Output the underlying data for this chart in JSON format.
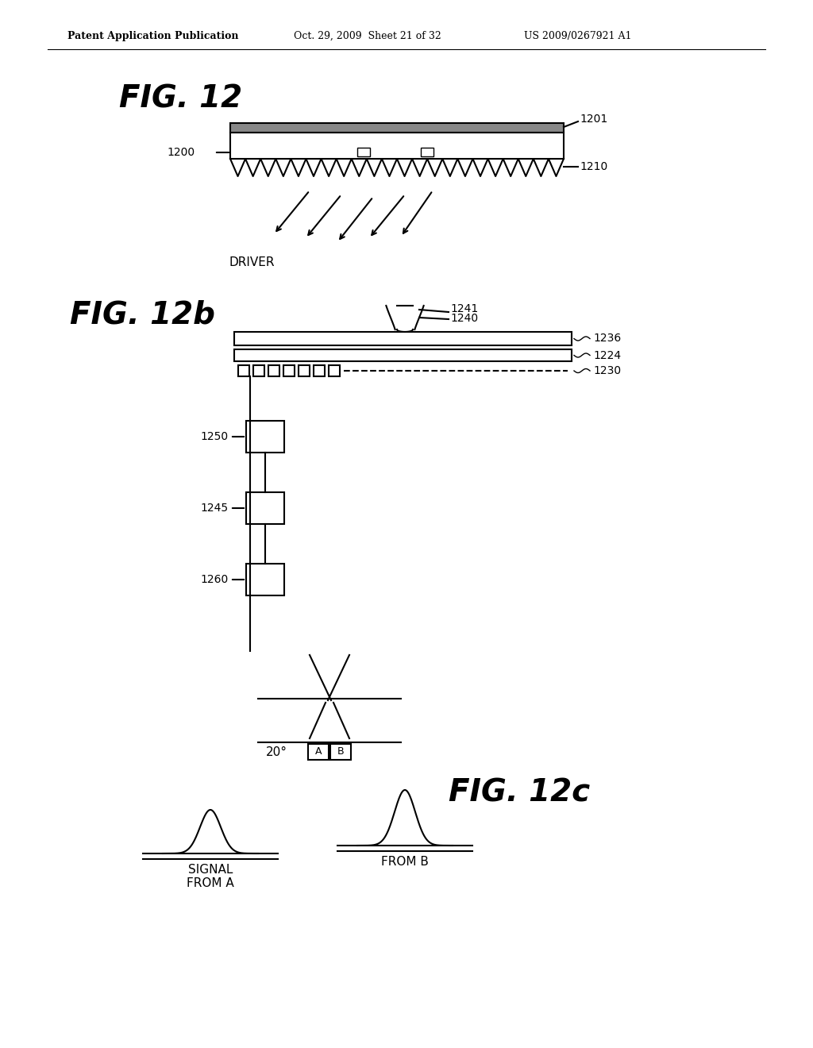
{
  "bg_color": "#ffffff",
  "header_left": "Patent Application Publication",
  "header_mid": "Oct. 29, 2009  Sheet 21 of 32",
  "header_right": "US 2009/0267921 A1",
  "fig12_title": "FIG. 12",
  "fig12b_title": "FIG. 12b",
  "fig12c_title": "FIG. 12c",
  "label_1200": "1200",
  "label_1201": "1201",
  "label_1210": "1210",
  "label_driver": "DRIVER",
  "label_1241": "1241",
  "label_1240": "1240",
  "label_1236": "1236",
  "label_1224": "1224",
  "label_1230": "1230",
  "label_1250": "1250",
  "label_1245": "1245",
  "label_1260": "1260",
  "label_20deg": "20°",
  "label_A": "A",
  "label_B": "B",
  "label_signal_from_a": "SIGNAL\nFROM A",
  "label_from_b": "FROM B"
}
